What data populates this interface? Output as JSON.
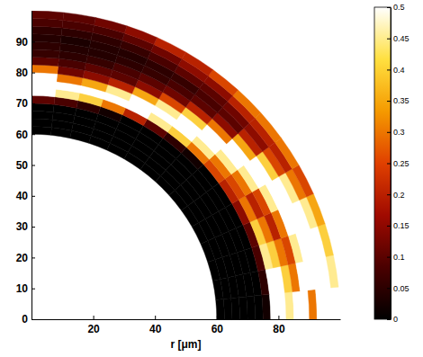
{
  "chart_data": {
    "type": "heatmap",
    "xlabel": "r [μm]",
    "xlim": [
      0,
      100
    ],
    "ylim": [
      0,
      100
    ],
    "xticks": [
      20,
      40,
      60,
      80
    ],
    "yticks": [
      0,
      10,
      20,
      30,
      40,
      50,
      60,
      70,
      80,
      90
    ],
    "r_edges": [
      60,
      62.5,
      65,
      67.5,
      70,
      72.5,
      75,
      77.5,
      80,
      82.5,
      85,
      87.5,
      90,
      92.5,
      95,
      97.5,
      100
    ],
    "angle_edges": [
      0,
      6,
      12,
      18,
      24,
      30,
      36,
      42,
      48,
      54,
      60,
      66,
      72,
      78,
      84,
      90
    ],
    "values": [
      [
        0,
        0,
        0,
        0,
        0,
        0,
        0.02,
        0.5,
        0.5,
        0.45,
        0.5,
        0.5,
        0.3,
        0.5,
        0.5,
        0.5
      ],
      [
        0,
        0,
        0,
        0,
        0,
        0,
        0.05,
        0.5,
        0.5,
        0.4,
        0.3,
        0.5,
        0.5,
        0.5,
        0.5,
        0.45
      ],
      [
        0,
        0,
        0,
        0,
        0,
        0,
        0.08,
        0.45,
        0.4,
        0.3,
        0.25,
        0.45,
        0.5,
        0.5,
        0.5,
        0.4
      ],
      [
        0,
        0,
        0,
        0,
        0,
        0,
        0.1,
        0.4,
        0.3,
        0.2,
        0.3,
        0.5,
        0.5,
        0.5,
        0.45,
        0.35
      ],
      [
        0,
        0,
        0,
        0,
        0,
        0,
        0.15,
        0.3,
        0.2,
        0.25,
        0.45,
        0.5,
        0.5,
        0.45,
        0.3,
        0.25
      ],
      [
        0,
        0,
        0,
        0,
        0,
        0,
        0.2,
        0.25,
        0.3,
        0.45,
        0.5,
        0.5,
        0.4,
        0.25,
        0.2,
        0.3
      ],
      [
        0,
        0,
        0,
        0,
        0,
        0,
        0.25,
        0.3,
        0.45,
        0.5,
        0.5,
        0.35,
        0.2,
        0.15,
        0.2,
        0.3
      ],
      [
        0,
        0,
        0,
        0,
        0,
        0.02,
        0.3,
        0.45,
        0.5,
        0.5,
        0.3,
        0.15,
        0.1,
        0.12,
        0.2,
        0.3
      ],
      [
        0,
        0,
        0,
        0,
        0,
        0.05,
        0.4,
        0.5,
        0.5,
        0.4,
        0.2,
        0.1,
        0.08,
        0.1,
        0.15,
        0.25
      ],
      [
        0,
        0,
        0,
        0,
        0,
        0.1,
        0.45,
        0.5,
        0.45,
        0.25,
        0.12,
        0.08,
        0.06,
        0.1,
        0.15,
        0.2
      ],
      [
        0,
        0,
        0,
        0,
        0,
        0.2,
        0.5,
        0.5,
        0.35,
        0.15,
        0.1,
        0.06,
        0.05,
        0.08,
        0.12,
        0.2
      ],
      [
        0,
        0,
        0,
        0,
        0.02,
        0.3,
        0.5,
        0.45,
        0.2,
        0.1,
        0.08,
        0.05,
        0.04,
        0.06,
        0.1,
        0.15
      ],
      [
        0,
        0,
        0,
        0,
        0.05,
        0.4,
        0.5,
        0.35,
        0.15,
        0.1,
        0.06,
        0.04,
        0.04,
        0.05,
        0.08,
        0.12
      ],
      [
        0,
        0,
        0,
        0,
        0.08,
        0.45,
        0.5,
        0.3,
        0.12,
        0.08,
        0.05,
        0.04,
        0.03,
        0.05,
        0.08,
        0.1
      ],
      [
        0,
        0,
        0,
        0,
        0.1,
        0.5,
        0.5,
        0.5,
        0.3,
        0.1,
        0.06,
        0.05,
        0.04,
        0.05,
        0.08,
        0.1
      ]
    ],
    "colorbar": {
      "range": [
        0,
        0.5
      ],
      "ticks": [
        0,
        0.05,
        0.1,
        0.15,
        0.2,
        0.25,
        0.3,
        0.35,
        0.4,
        0.45,
        0.5
      ]
    }
  }
}
